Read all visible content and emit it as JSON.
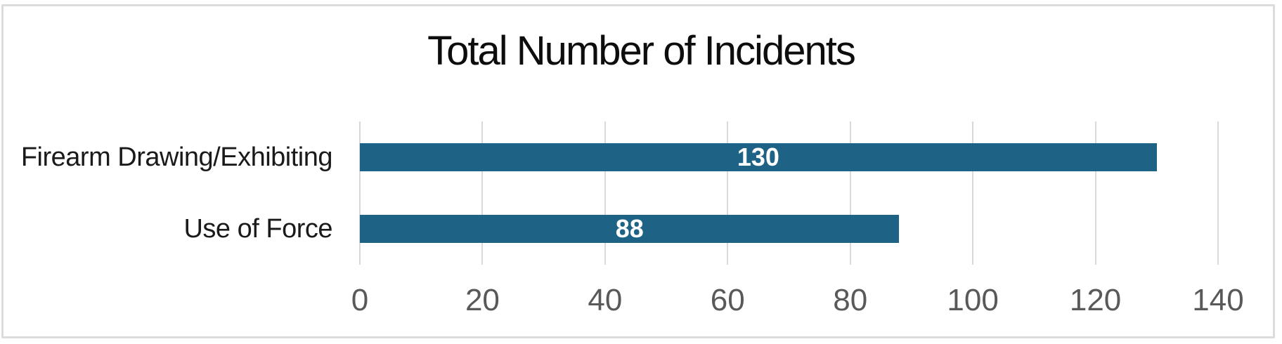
{
  "chart_data": {
    "type": "bar",
    "orientation": "horizontal",
    "title": "Total Number of Incidents",
    "categories": [
      "Firearm Drawing/Exhibiting",
      "Use of Force"
    ],
    "values": [
      130,
      88
    ],
    "value_labels": [
      "130",
      "88"
    ],
    "xlabel": "",
    "ylabel": "",
    "xlim": [
      0,
      140
    ],
    "x_ticks": [
      0,
      20,
      40,
      60,
      80,
      100,
      120,
      140
    ],
    "x_tick_labels": [
      "0",
      "20",
      "40",
      "60",
      "80",
      "100",
      "120",
      "140"
    ],
    "grid": true,
    "legend": false,
    "colors": {
      "bar_fill": "#1E6286",
      "value_label": "#FFFFFF",
      "gridline": "#D9D9D9",
      "tick_label": "#595959",
      "category_label": "#1A1A1A",
      "title": "#0D0D0D",
      "frame_border": "#DCDCDC",
      "background": "#FFFFFF"
    }
  }
}
